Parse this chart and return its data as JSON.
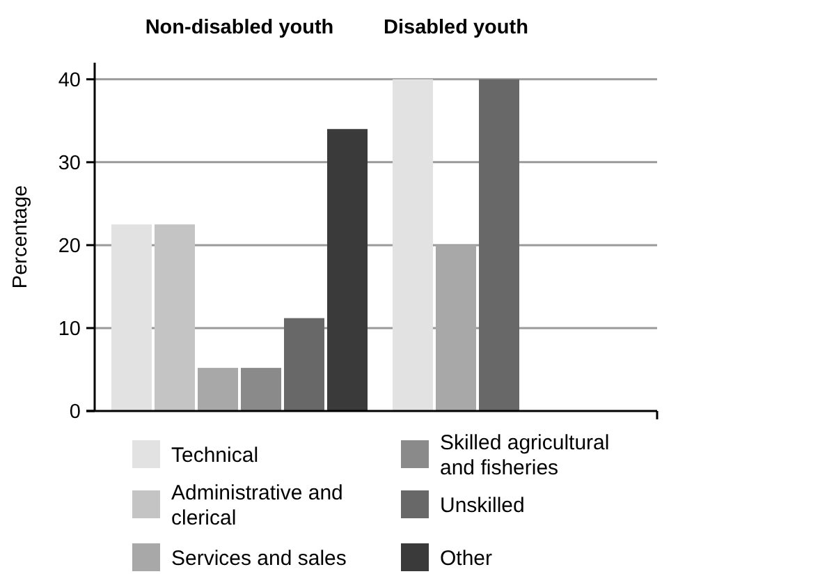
{
  "chart_data": {
    "type": "bar",
    "categories": [
      "Non-disabled youth",
      "Disabled youth"
    ],
    "ylabel": "Percentage",
    "ylim": [
      0,
      42
    ],
    "yticks": [
      0,
      10,
      20,
      30,
      40
    ],
    "grid": "y",
    "legend": "bottom",
    "series": [
      {
        "name": "Technical",
        "color": "#e2e2e2",
        "values": [
          22.5,
          40
        ]
      },
      {
        "name": "Administrative and clerical",
        "color": "#c4c4c4",
        "values": [
          22.5,
          null
        ]
      },
      {
        "name": "Services and sales",
        "color": "#a8a8a8",
        "values": [
          5.2,
          20
        ]
      },
      {
        "name": "Skilled agricultural and fisheries",
        "color": "#8a8a8a",
        "values": [
          5.2,
          null
        ]
      },
      {
        "name": "Unskilled",
        "color": "#686868",
        "values": [
          11.2,
          40
        ]
      },
      {
        "name": "Other",
        "color": "#3a3a3a",
        "values": [
          34,
          null
        ]
      }
    ]
  }
}
